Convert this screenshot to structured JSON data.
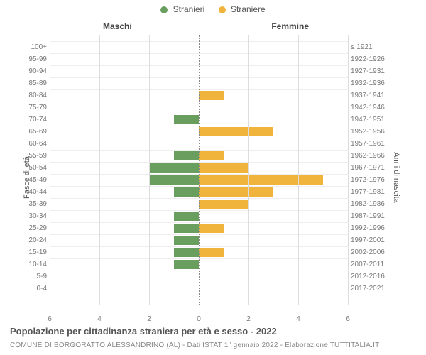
{
  "legend": {
    "male": {
      "label": "Stranieri",
      "color": "#6a9e5e"
    },
    "female": {
      "label": "Straniere",
      "color": "#f0b43c"
    }
  },
  "section_titles": {
    "left": "Maschi",
    "right": "Femmine"
  },
  "y_axis_titles": {
    "left": "Fasce di età",
    "right": "Anni di nascita"
  },
  "x_axis": {
    "ticks": [
      6,
      4,
      2,
      0,
      2,
      4,
      6
    ],
    "max": 6
  },
  "grid_color": "#eee",
  "tick_grid_color": "#ddd",
  "center_line_color": "#888",
  "rows": [
    {
      "age": "100+",
      "birth": "≤ 1921",
      "m": 0,
      "f": 0
    },
    {
      "age": "95-99",
      "birth": "1922-1926",
      "m": 0,
      "f": 0
    },
    {
      "age": "90-94",
      "birth": "1927-1931",
      "m": 0,
      "f": 0
    },
    {
      "age": "85-89",
      "birth": "1932-1936",
      "m": 0,
      "f": 0
    },
    {
      "age": "80-84",
      "birth": "1937-1941",
      "m": 0,
      "f": 1
    },
    {
      "age": "75-79",
      "birth": "1942-1946",
      "m": 0,
      "f": 0
    },
    {
      "age": "70-74",
      "birth": "1947-1951",
      "m": 1,
      "f": 0
    },
    {
      "age": "65-69",
      "birth": "1952-1956",
      "m": 0,
      "f": 3
    },
    {
      "age": "60-64",
      "birth": "1957-1961",
      "m": 0,
      "f": 0
    },
    {
      "age": "55-59",
      "birth": "1962-1966",
      "m": 1,
      "f": 1
    },
    {
      "age": "50-54",
      "birth": "1967-1971",
      "m": 2,
      "f": 2
    },
    {
      "age": "45-49",
      "birth": "1972-1976",
      "m": 2,
      "f": 5
    },
    {
      "age": "40-44",
      "birth": "1977-1981",
      "m": 1,
      "f": 3
    },
    {
      "age": "35-39",
      "birth": "1982-1986",
      "m": 0,
      "f": 2
    },
    {
      "age": "30-34",
      "birth": "1987-1991",
      "m": 1,
      "f": 0
    },
    {
      "age": "25-29",
      "birth": "1992-1996",
      "m": 1,
      "f": 1
    },
    {
      "age": "20-24",
      "birth": "1997-2001",
      "m": 1,
      "f": 0
    },
    {
      "age": "15-19",
      "birth": "2002-2006",
      "m": 1,
      "f": 1
    },
    {
      "age": "10-14",
      "birth": "2007-2011",
      "m": 1,
      "f": 0
    },
    {
      "age": "5-9",
      "birth": "2012-2016",
      "m": 0,
      "f": 0
    },
    {
      "age": "0-4",
      "birth": "2017-2021",
      "m": 0,
      "f": 0
    }
  ],
  "footer": {
    "title": "Popolazione per cittadinanza straniera per età e sesso - 2022",
    "subtitle": "COMUNE DI BORGORATTO ALESSANDRINO (AL) - Dati ISTAT 1° gennaio 2022 - Elaborazione TUTTITALIA.IT"
  }
}
